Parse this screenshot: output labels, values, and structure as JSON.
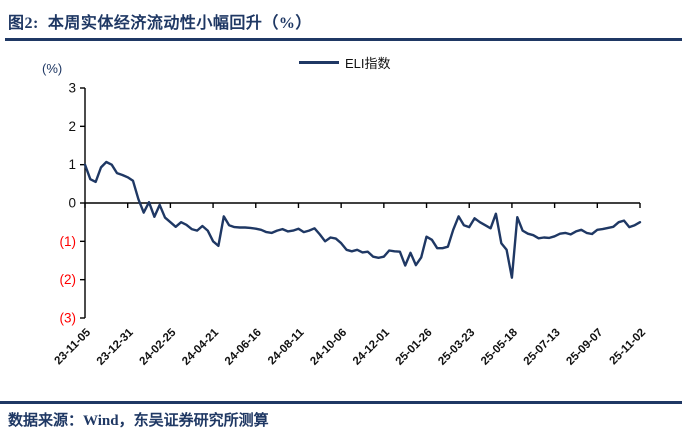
{
  "page": {
    "title": "图2:  本周实体经济流动性小幅回升（%）",
    "source": "数据来源：Wind，东吴证券研究所测算"
  },
  "colors": {
    "navy": "#1f3864",
    "axis": "#000000",
    "axis_text": "#111111",
    "negative": "#ff0000",
    "background": "#ffffff"
  },
  "chart_data": {
    "type": "line",
    "title": "本周实体经济流动性小幅回升（%）",
    "unit_label": "(%)",
    "legend": [
      "ELI指数"
    ],
    "legend_position": "top-center",
    "grid": false,
    "frequency": "weekly",
    "x_start": "23-11-05",
    "x_end": "25-11-02",
    "ylim": [
      -3,
      3
    ],
    "y_ticks": [
      3,
      2,
      1,
      0,
      -1,
      -2,
      -3
    ],
    "y_tick_labels": [
      "3",
      "2",
      "1",
      "0",
      "(1)",
      "(2)",
      "(3)"
    ],
    "x_tick_labels": [
      "23-11-05",
      "23-12-31",
      "24-02-25",
      "24-04-21",
      "24-06-16",
      "24-08-11",
      "24-10-06",
      "24-12-01",
      "25-01-26",
      "25-03-23",
      "25-05-18",
      "25-07-13",
      "25-09-07",
      "25-11-02"
    ],
    "series": [
      {
        "name": "ELI指数",
        "color": "#1f3864",
        "values": [
          1.0,
          0.62,
          0.55,
          0.93,
          1.07,
          1.0,
          0.78,
          0.73,
          0.67,
          0.58,
          0.1,
          -0.25,
          0.02,
          -0.36,
          -0.05,
          -0.38,
          -0.5,
          -0.62,
          -0.5,
          -0.57,
          -0.68,
          -0.72,
          -0.6,
          -0.72,
          -1.0,
          -1.12,
          -0.35,
          -0.58,
          -0.63,
          -0.64,
          -0.64,
          -0.65,
          -0.67,
          -0.7,
          -0.76,
          -0.78,
          -0.72,
          -0.68,
          -0.74,
          -0.72,
          -0.67,
          -0.76,
          -0.72,
          -0.66,
          -0.82,
          -1.0,
          -0.9,
          -0.93,
          -1.05,
          -1.22,
          -1.26,
          -1.22,
          -1.29,
          -1.27,
          -1.4,
          -1.43,
          -1.4,
          -1.24,
          -1.26,
          -1.27,
          -1.63,
          -1.3,
          -1.62,
          -1.42,
          -0.88,
          -0.96,
          -1.18,
          -1.18,
          -1.14,
          -0.7,
          -0.35,
          -0.58,
          -0.63,
          -0.4,
          -0.5,
          -0.58,
          -0.66,
          -0.28,
          -1.05,
          -1.22,
          -1.95,
          -0.37,
          -0.72,
          -0.8,
          -0.84,
          -0.92,
          -0.9,
          -0.91,
          -0.87,
          -0.8,
          -0.78,
          -0.82,
          -0.74,
          -0.7,
          -0.78,
          -0.81,
          -0.7,
          -0.68,
          -0.65,
          -0.62,
          -0.5,
          -0.46,
          -0.63,
          -0.58,
          -0.5
        ]
      }
    ]
  }
}
